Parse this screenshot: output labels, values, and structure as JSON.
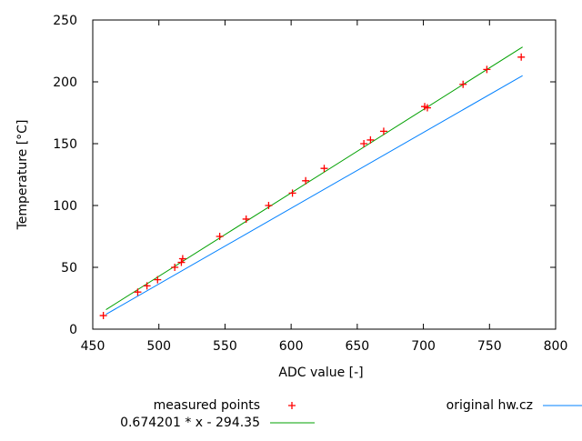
{
  "chart_data": {
    "type": "scatter",
    "xlabel": "ADC value [-]",
    "ylabel": "Temperature [°C]",
    "xlim": [
      450,
      800
    ],
    "ylim": [
      0,
      250
    ],
    "xticks": [
      450,
      500,
      550,
      600,
      650,
      700,
      750,
      800
    ],
    "yticks": [
      0,
      50,
      100,
      150,
      200,
      250
    ],
    "grid": false,
    "legend_placement": "bottom",
    "series": [
      {
        "name": "measured points",
        "type": "scatter",
        "marker": "plus",
        "color": "#ff0000",
        "points": [
          [
            458,
            11
          ],
          [
            484,
            30
          ],
          [
            491,
            35
          ],
          [
            499,
            40
          ],
          [
            512,
            50
          ],
          [
            517,
            54
          ],
          [
            518,
            57
          ],
          [
            546,
            75
          ],
          [
            566,
            89
          ],
          [
            583,
            100
          ],
          [
            601,
            110
          ],
          [
            611,
            120
          ],
          [
            625,
            130
          ],
          [
            655,
            150
          ],
          [
            660,
            153
          ],
          [
            670,
            160
          ],
          [
            701,
            180
          ],
          [
            703,
            179
          ],
          [
            730,
            198
          ],
          [
            748,
            210
          ],
          [
            774,
            220
          ]
        ]
      },
      {
        "name": "0.674201 * x - 294.35",
        "type": "line",
        "color": "#00a000",
        "slope": 0.674201,
        "intercept": -294.35,
        "x_range": [
          460,
          775
        ]
      },
      {
        "name": "original hw.cz",
        "type": "line",
        "color": "#0080ff",
        "points": [
          [
            460,
            12
          ],
          [
            775,
            205
          ]
        ]
      }
    ]
  }
}
